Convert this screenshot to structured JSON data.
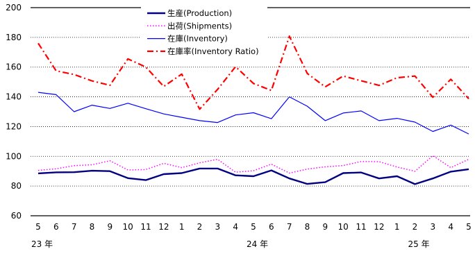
{
  "chart_data": {
    "type": "line",
    "title": "",
    "xlabel": "",
    "ylabel": "",
    "ylim": [
      60,
      200
    ],
    "yticks": [
      60,
      80,
      100,
      120,
      140,
      160,
      180,
      200
    ],
    "grid": "horizontal-dotted",
    "legend_position": "top-center",
    "categories": [
      "5",
      "6",
      "7",
      "8",
      "9",
      "10",
      "11",
      "12",
      "1",
      "2",
      "3",
      "4",
      "5",
      "6",
      "7",
      "8",
      "9",
      "10",
      "11",
      "12",
      "1",
      "2",
      "3",
      "4",
      "5"
    ],
    "year_labels": [
      {
        "index": 0,
        "text": "23 年"
      },
      {
        "index": 12,
        "text": "24 年"
      },
      {
        "index": 21,
        "text": "25 年"
      }
    ],
    "series": [
      {
        "name": "生産(Production)",
        "color": "#000080",
        "style": "solid-thick",
        "values": [
          88.5,
          89.2,
          89.3,
          90.3,
          90.0,
          85.3,
          84.0,
          88.0,
          88.7,
          91.8,
          91.8,
          87.2,
          86.6,
          90.5,
          85.1,
          81.4,
          82.6,
          88.7,
          89.1,
          85.1,
          86.6,
          81.3,
          85.1,
          89.7,
          91.3
        ]
      },
      {
        "name": "出荷(Shipments)",
        "color": "#ff00ff",
        "style": "dotted",
        "values": [
          90.5,
          91.6,
          93.7,
          94.3,
          97.0,
          90.8,
          91.1,
          95.3,
          92.4,
          95.6,
          98.0,
          89.3,
          90.3,
          94.7,
          88.7,
          91.4,
          92.9,
          93.8,
          96.5,
          96.4,
          92.8,
          89.9,
          100.4,
          92.4,
          98.0
        ]
      },
      {
        "name": "在庫(Inventory)",
        "color": "#0000ff",
        "style": "solid-thin",
        "values": [
          143.0,
          141.5,
          130.0,
          134.4,
          132.2,
          135.7,
          132.0,
          128.5,
          126.2,
          124.0,
          122.7,
          127.8,
          129.3,
          125.3,
          140.0,
          133.7,
          124.0,
          129.1,
          130.5,
          124.0,
          125.5,
          123.0,
          116.7,
          121.0,
          115.0
        ]
      },
      {
        "name": "在庫率(Inventory Ratio)",
        "color": "#ff0000",
        "style": "dash-dot",
        "values": [
          176.0,
          157.5,
          155.0,
          150.7,
          147.8,
          165.5,
          160.0,
          147.0,
          155.3,
          131.7,
          145.0,
          160.3,
          149.0,
          144.3,
          180.8,
          155.7,
          146.7,
          154.0,
          150.8,
          147.7,
          152.8,
          154.0,
          139.7,
          151.8,
          138.7
        ]
      }
    ]
  }
}
